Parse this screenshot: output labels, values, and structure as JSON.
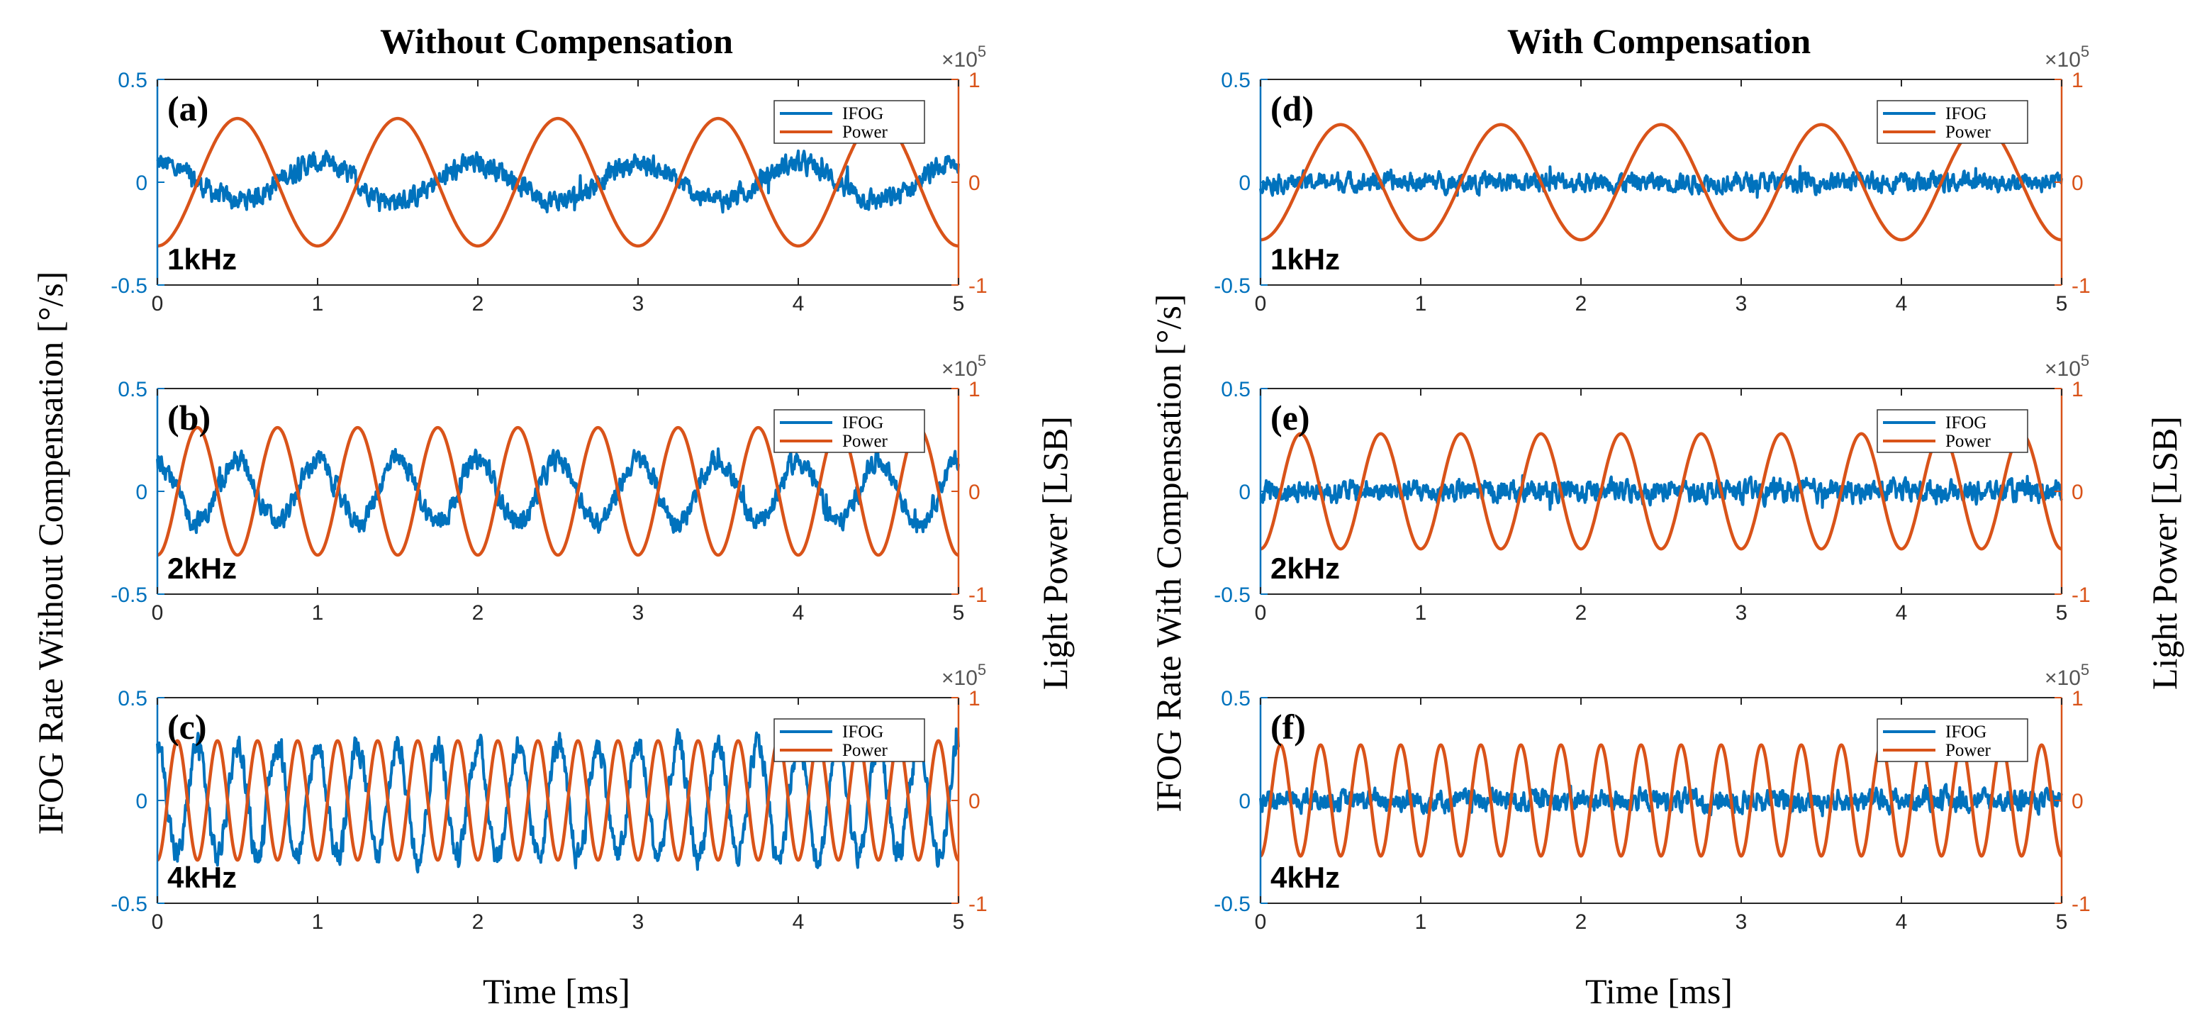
{
  "figure": {
    "left_title": "Without Compensation",
    "right_title": "With Compensation",
    "left_ylabel": "IFOG Rate Without Compensation [°/s]",
    "right_ylabel": "IFOG Rate With Compensation [°/s]",
    "power_ylabel_left": "Light   Power   [LSB]",
    "power_ylabel_right": "Light   Power   [LSB]",
    "left_xlabel": "Time [ms]",
    "right_xlabel": "Time [ms]"
  },
  "colors": {
    "ifog": "#0072BD",
    "power": "#D95319",
    "axis": "#262626"
  },
  "chart_data": [
    {
      "type": "line",
      "panel": "(a)",
      "freq_label": "1kHz",
      "group": "Without Compensation",
      "x_range": [
        0,
        5
      ],
      "xlabel": "Time [ms]",
      "ylim_left": [
        -0.5,
        0.5
      ],
      "ylim_right": [
        -1,
        1
      ],
      "right_axis_multiplier": "×10^5",
      "x_ticks": [
        "0",
        "1",
        "2",
        "3",
        "4",
        "5"
      ],
      "y_left_ticks": [
        "0.5",
        "0",
        "-0.5"
      ],
      "y_right_ticks": [
        "1",
        "0",
        "-1"
      ],
      "legend": [
        "IFOG",
        "Power"
      ],
      "series": [
        {
          "name": "Power",
          "axis": "right",
          "frequency_khz": 1,
          "amplitude": 0.62
        },
        {
          "name": "IFOG",
          "axis": "left",
          "frequency_khz": 1,
          "amplitude": 0.09,
          "noise": 0.04,
          "phase": "inverted"
        }
      ]
    },
    {
      "type": "line",
      "panel": "(b)",
      "freq_label": "2kHz",
      "group": "Without Compensation",
      "x_range": [
        0,
        5
      ],
      "xlabel": "Time [ms]",
      "ylim_left": [
        -0.5,
        0.5
      ],
      "ylim_right": [
        -1,
        1
      ],
      "right_axis_multiplier": "×10^5",
      "x_ticks": [
        "0",
        "1",
        "2",
        "3",
        "4",
        "5"
      ],
      "y_left_ticks": [
        "0.5",
        "0",
        "-0.5"
      ],
      "y_right_ticks": [
        "1",
        "0",
        "-1"
      ],
      "legend": [
        "IFOG",
        "Power"
      ],
      "series": [
        {
          "name": "Power",
          "axis": "right",
          "frequency_khz": 2,
          "amplitude": 0.62
        },
        {
          "name": "IFOG",
          "axis": "left",
          "frequency_khz": 2,
          "amplitude": 0.15,
          "noise": 0.04,
          "phase": "inverted"
        }
      ]
    },
    {
      "type": "line",
      "panel": "(c)",
      "freq_label": "4kHz",
      "group": "Without Compensation",
      "x_range": [
        0,
        5
      ],
      "xlabel": "Time [ms]",
      "ylim_left": [
        -0.5,
        0.5
      ],
      "ylim_right": [
        -1,
        1
      ],
      "right_axis_multiplier": "×10^5",
      "x_ticks": [
        "0",
        "1",
        "2",
        "3",
        "4",
        "5"
      ],
      "y_left_ticks": [
        "0.5",
        "0",
        "-0.5"
      ],
      "y_right_ticks": [
        "1",
        "0",
        "-1"
      ],
      "legend": [
        "IFOG",
        "Power"
      ],
      "series": [
        {
          "name": "Power",
          "axis": "right",
          "frequency_khz": 4,
          "amplitude": 0.58
        },
        {
          "name": "IFOG",
          "axis": "left",
          "frequency_khz": 4,
          "amplitude": 0.27,
          "noise": 0.05,
          "phase": "inverted"
        }
      ]
    },
    {
      "type": "line",
      "panel": "(d)",
      "freq_label": "1kHz",
      "group": "With Compensation",
      "x_range": [
        0,
        5
      ],
      "xlabel": "Time [ms]",
      "ylim_left": [
        -0.5,
        0.5
      ],
      "ylim_right": [
        -1,
        1
      ],
      "right_axis_multiplier": "×10^5",
      "x_ticks": [
        "0",
        "1",
        "2",
        "3",
        "4",
        "5"
      ],
      "y_left_ticks": [
        "0.5",
        "0",
        "-0.5"
      ],
      "y_right_ticks": [
        "1",
        "0",
        "-1"
      ],
      "legend": [
        "IFOG",
        "Power"
      ],
      "series": [
        {
          "name": "Power",
          "axis": "right",
          "frequency_khz": 1,
          "amplitude": 0.56
        },
        {
          "name": "IFOG",
          "axis": "left",
          "frequency_khz": 1,
          "amplitude": 0.0,
          "noise": 0.035,
          "phase": "none"
        }
      ]
    },
    {
      "type": "line",
      "panel": "(e)",
      "freq_label": "2kHz",
      "group": "With Compensation",
      "x_range": [
        0,
        5
      ],
      "xlabel": "Time [ms]",
      "ylim_left": [
        -0.5,
        0.5
      ],
      "ylim_right": [
        -1,
        1
      ],
      "right_axis_multiplier": "×10^5",
      "x_ticks": [
        "0",
        "1",
        "2",
        "3",
        "4",
        "5"
      ],
      "y_left_ticks": [
        "0.5",
        "0",
        "-0.5"
      ],
      "y_right_ticks": [
        "1",
        "0",
        "-1"
      ],
      "legend": [
        "IFOG",
        "Power"
      ],
      "series": [
        {
          "name": "Power",
          "axis": "right",
          "frequency_khz": 2,
          "amplitude": 0.56
        },
        {
          "name": "IFOG",
          "axis": "left",
          "frequency_khz": 2,
          "amplitude": 0.0,
          "noise": 0.04,
          "phase": "none"
        }
      ]
    },
    {
      "type": "line",
      "panel": "(f)",
      "freq_label": "4kHz",
      "group": "With Compensation",
      "x_range": [
        0,
        5
      ],
      "xlabel": "Time [ms]",
      "ylim_left": [
        -0.5,
        0.5
      ],
      "ylim_right": [
        -1,
        1
      ],
      "right_axis_multiplier": "×10^5",
      "x_ticks": [
        "0",
        "1",
        "2",
        "3",
        "4",
        "5"
      ],
      "y_left_ticks": [
        "0.5",
        "0",
        "-0.5"
      ],
      "y_right_ticks": [
        "1",
        "0",
        "-1"
      ],
      "legend": [
        "IFOG",
        "Power"
      ],
      "series": [
        {
          "name": "Power",
          "axis": "right",
          "frequency_khz": 4,
          "amplitude": 0.54
        },
        {
          "name": "IFOG",
          "axis": "left",
          "frequency_khz": 4,
          "amplitude": 0.0,
          "noise": 0.04,
          "phase": "none"
        }
      ]
    }
  ]
}
